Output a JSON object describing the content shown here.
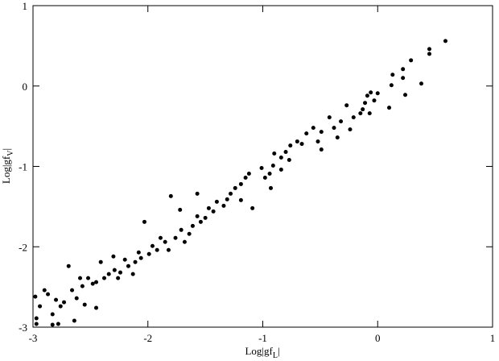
{
  "chart_data": {
    "type": "scatter",
    "xlabel": [
      "Log|gf",
      "L",
      "|"
    ],
    "ylabel": [
      "Log|gf",
      "V",
      "|"
    ],
    "color": "#000000",
    "xlim": [
      -3,
      1
    ],
    "ylim": [
      -3,
      1
    ],
    "xticks": [
      -3,
      -2,
      -1,
      0,
      1
    ],
    "yticks": [
      -3,
      -2,
      -1,
      0,
      1
    ],
    "x": [
      0.59,
      0.45,
      0.45,
      0.38,
      0.29,
      0.22,
      0.22,
      0.24,
      0.13,
      0.12,
      0.1,
      0,
      -0.03,
      -0.06,
      -0.09,
      -0.11,
      -0.13,
      -0.15,
      -0.21,
      -0.27,
      -0.32,
      -0.38,
      -0.42,
      -0.49,
      -0.52,
      -0.56,
      -0.62,
      -0.66,
      -0.7,
      -0.76,
      -0.8,
      -0.84,
      -0.9,
      -0.91,
      -0.94,
      -0.93,
      -1.01,
      -0.98,
      -1.12,
      -1.15,
      -1.19,
      -1.24,
      -1.28,
      -1.31,
      -1.34,
      -1.4,
      -1.43,
      -1.47,
      -1.5,
      -1.54,
      -1.57,
      -1.61,
      -1.64,
      -1.68,
      -1.71,
      -1.76,
      -1.8,
      -1.82,
      -1.85,
      -1.89,
      -1.92,
      -1.96,
      -1.99,
      -2.03,
      -2.06,
      -2.08,
      -2.11,
      -2.17,
      -2.2,
      -2.24,
      -2.26,
      -2.29,
      -2.34,
      -2.38,
      -2.41,
      -2.45,
      -2.48,
      -2.52,
      -2.57,
      -2.59,
      -2.62,
      -2.66,
      -2.69,
      -2.73,
      -2.76,
      -2.8,
      -2.83,
      -2.87,
      -2.9,
      -2.94,
      -2.97,
      -2.97,
      -2.98,
      -2.78,
      -2.64,
      -2.45,
      -2.55,
      -2.83,
      -2.3,
      -2.13,
      -1.72,
      -1.19,
      -1.09,
      -0.84,
      -0.35,
      -0.24,
      -0.49,
      -0.07,
      -0.77,
      -1.57
    ],
    "y": [
      0.56,
      0.46,
      0.4,
      0.03,
      0.32,
      0.21,
      0.1,
      -0.11,
      0.14,
      0.01,
      -0.27,
      -0.09,
      -0.18,
      -0.08,
      -0.12,
      -0.21,
      -0.29,
      -0.34,
      -0.39,
      -0.24,
      -0.44,
      -0.52,
      -0.39,
      -0.57,
      -0.69,
      -0.52,
      -0.59,
      -0.72,
      -0.69,
      -0.74,
      -0.82,
      -0.89,
      -0.84,
      -0.99,
      -1.09,
      -1.27,
      -1.02,
      -1.14,
      -1.09,
      -1.14,
      -1.22,
      -1.27,
      -1.34,
      -1.41,
      -1.49,
      -1.44,
      -1.56,
      -1.52,
      -1.64,
      -1.69,
      -1.62,
      -1.74,
      -1.84,
      -1.94,
      -1.79,
      -1.89,
      -1.37,
      -2.04,
      -1.94,
      -1.89,
      -2.04,
      -1.99,
      -2.09,
      -1.69,
      -2.14,
      -2.07,
      -2.19,
      -2.24,
      -2.16,
      -2.32,
      -2.39,
      -2.29,
      -2.34,
      -2.39,
      -2.19,
      -2.44,
      -2.46,
      -2.39,
      -2.49,
      -2.39,
      -2.64,
      -2.54,
      -2.24,
      -2.69,
      -2.74,
      -2.66,
      -2.84,
      -2.59,
      -2.54,
      -2.74,
      -2.89,
      -2.96,
      -2.62,
      -2.96,
      -2.92,
      -2.76,
      -2.72,
      -2.97,
      -2.12,
      -2.34,
      -1.54,
      -1.42,
      -1.52,
      -1.04,
      -0.64,
      -0.54,
      -0.79,
      -0.34,
      -0.92,
      -1.34
    ]
  }
}
